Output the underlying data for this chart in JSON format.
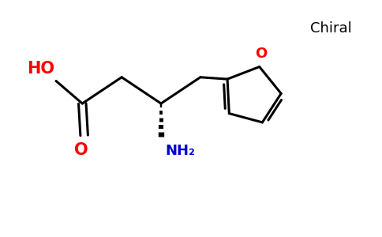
{
  "background_color": "#ffffff",
  "bond_color": "#000000",
  "ho_color": "#ff0000",
  "o_color": "#ff0000",
  "nh2_color": "#0000cd",
  "o_ring_color": "#ff0000",
  "chiral_color": "#000000",
  "chiral_text": "Chiral",
  "ho_text": "HO",
  "o_text": "O",
  "nh2_text": "NH₂",
  "line_width": 2.2,
  "figsize": [
    4.84,
    3.0
  ],
  "dpi": 100
}
